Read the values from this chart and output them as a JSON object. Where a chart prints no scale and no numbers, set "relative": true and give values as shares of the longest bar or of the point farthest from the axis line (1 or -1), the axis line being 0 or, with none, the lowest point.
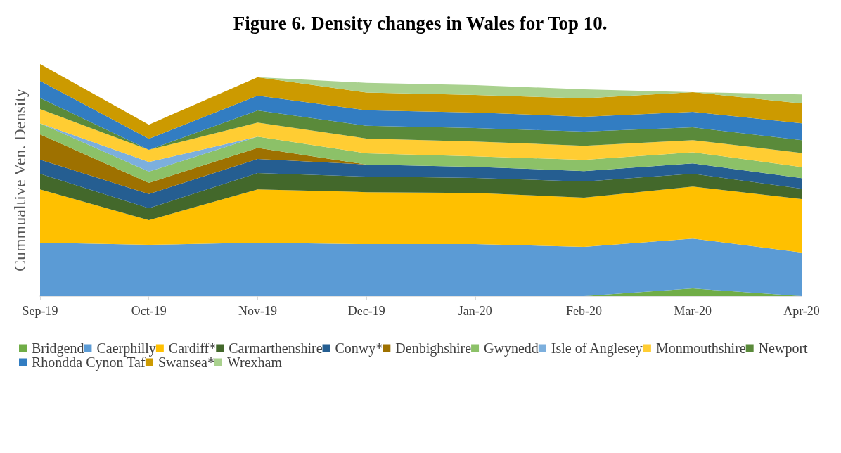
{
  "chart_data": {
    "type": "area",
    "title": "Figure 6. Density changes in Wales for Top 10.",
    "ylabel": "Cummualtive Ven. Density",
    "relative": true,
    "stacked": true,
    "legend": "bottom",
    "grid": false,
    "categories": [
      "Sep-19",
      "Oct-19",
      "Nov-19",
      "Dec-19",
      "Jan-20",
      "Feb-20",
      "Mar-20",
      "Apr-20"
    ],
    "series": [
      {
        "name": "Bridgend",
        "color": "#70ad47",
        "values": [
          0,
          0,
          0,
          0,
          0,
          0,
          0.033,
          0
        ]
      },
      {
        "name": "Caerphilly",
        "color": "#5b9bd5",
        "values": [
          0.23,
          0.221,
          0.23,
          0.224,
          0.224,
          0.212,
          0.215,
          0.188
        ]
      },
      {
        "name": "Cardiff*",
        "color": "#ffc000",
        "values": [
          0.23,
          0.106,
          0.23,
          0.224,
          0.221,
          0.212,
          0.224,
          0.23
        ]
      },
      {
        "name": "Carmarthenshire",
        "color": "#43682b",
        "values": [
          0.067,
          0.052,
          0.07,
          0.067,
          0.064,
          0.07,
          0.055,
          0.045
        ]
      },
      {
        "name": "Conwy*",
        "color": "#255e91",
        "values": [
          0.061,
          0.061,
          0.061,
          0.052,
          0.048,
          0.045,
          0.045,
          0.045
        ]
      },
      {
        "name": "Denbighshire",
        "color": "#9e7100",
        "values": [
          0.109,
          0.048,
          0.048,
          0,
          0,
          0,
          0,
          0
        ]
      },
      {
        "name": "Gwynedd",
        "color": "#8cc168",
        "values": [
          0.048,
          0.048,
          0.048,
          0.048,
          0.045,
          0.048,
          0.048,
          0.048
        ]
      },
      {
        "name": "Isle of Anglesey",
        "color": "#7cafdd",
        "values": [
          0,
          0.042,
          0,
          0,
          0,
          0,
          0,
          0
        ]
      },
      {
        "name": "Monmouthshire",
        "color": "#ffcd33",
        "values": [
          0.061,
          0.052,
          0.061,
          0.064,
          0.064,
          0.061,
          0.052,
          0.061
        ]
      },
      {
        "name": "Newport",
        "color": "#5a8a3a",
        "values": [
          0.048,
          0,
          0.052,
          0.055,
          0.058,
          0.061,
          0.055,
          0.055
        ]
      },
      {
        "name": "Rhondda Cynon Taf",
        "color": "#327dc2",
        "values": [
          0.073,
          0.048,
          0.064,
          0.067,
          0.067,
          0.064,
          0.067,
          0.073
        ]
      },
      {
        "name": "Swansea*",
        "color": "#cc9a00",
        "values": [
          0.073,
          0.061,
          0.079,
          0.076,
          0.076,
          0.079,
          0.085,
          0.085
        ]
      },
      {
        "name": "Wrexham",
        "color": "#a9d18e",
        "values": [
          0,
          0,
          0,
          0.042,
          0.042,
          0.039,
          0,
          0.039
        ]
      }
    ]
  }
}
